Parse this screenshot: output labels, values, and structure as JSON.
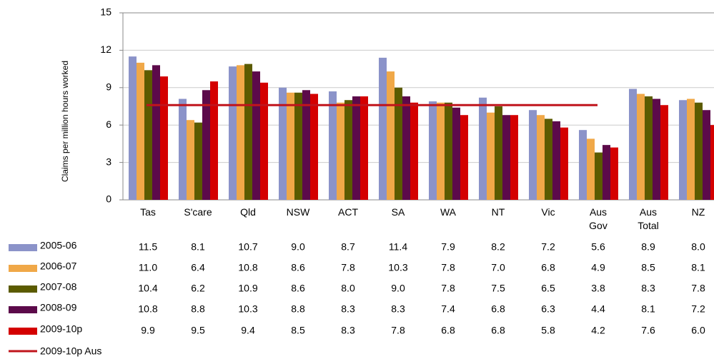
{
  "chart_data": {
    "type": "bar",
    "y_label": "Claims per million hours worked",
    "categories": [
      "Tas",
      "S'care",
      "Qld",
      "NSW",
      "ACT",
      "SA",
      "WA",
      "NT",
      "Vic",
      "Aus Gov",
      "Aus Total",
      "NZ"
    ],
    "series": [
      {
        "name": "2005-06",
        "color": "#8b93c9",
        "values": [
          11.5,
          8.1,
          10.7,
          9.0,
          8.7,
          11.4,
          7.9,
          8.2,
          7.2,
          5.6,
          8.9,
          8.0
        ],
        "value_labels": [
          "11.5",
          "8.1",
          "10.7",
          "9.0",
          "8.7",
          "11.4",
          "7.9",
          "8.2",
          "7.2",
          "5.6",
          "8.9",
          "8.0"
        ]
      },
      {
        "name": "2006-07",
        "color": "#f0a848",
        "values": [
          11.0,
          6.4,
          10.8,
          8.6,
          7.8,
          10.3,
          7.8,
          7.0,
          6.8,
          4.9,
          8.5,
          8.1
        ],
        "value_labels": [
          "11.0",
          "6.4",
          "10.8",
          "8.6",
          "7.8",
          "10.3",
          "7.8",
          "7.0",
          "6.8",
          "4.9",
          "8.5",
          "8.1"
        ]
      },
      {
        "name": "2007-08",
        "color": "#5b5b00",
        "values": [
          10.4,
          6.2,
          10.9,
          8.6,
          8.0,
          9.0,
          7.8,
          7.5,
          6.5,
          3.8,
          8.3,
          7.8
        ],
        "value_labels": [
          "10.4",
          "6.2",
          "10.9",
          "8.6",
          "8.0",
          "9.0",
          "7.8",
          "7.5",
          "6.5",
          "3.8",
          "8.3",
          "7.8"
        ]
      },
      {
        "name": "2008-09",
        "color": "#5c0a4a",
        "values": [
          10.8,
          8.8,
          10.3,
          8.8,
          8.3,
          8.3,
          7.4,
          6.8,
          6.3,
          4.4,
          8.1,
          7.2
        ],
        "value_labels": [
          "10.8",
          "8.8",
          "10.3",
          "8.8",
          "8.3",
          "8.3",
          "7.4",
          "6.8",
          "6.3",
          "4.4",
          "8.1",
          "7.2"
        ]
      },
      {
        "name": "2009-10p",
        "color": "#d40000",
        "values": [
          9.9,
          9.5,
          9.4,
          8.5,
          8.3,
          7.8,
          6.8,
          6.8,
          5.8,
          4.2,
          7.6,
          6.0
        ],
        "value_labels": [
          "9.9",
          "9.5",
          "9.4",
          "8.5",
          "8.3",
          "7.8",
          "6.8",
          "6.8",
          "5.8",
          "4.2",
          "7.6",
          "6.0"
        ]
      }
    ],
    "reference": {
      "name": "2009-10p Aus",
      "value": 7.6,
      "color": "#c0141c"
    },
    "ylim": [
      0,
      15
    ],
    "yticks": [
      0,
      3,
      6,
      9,
      12,
      15
    ],
    "grid": true
  }
}
